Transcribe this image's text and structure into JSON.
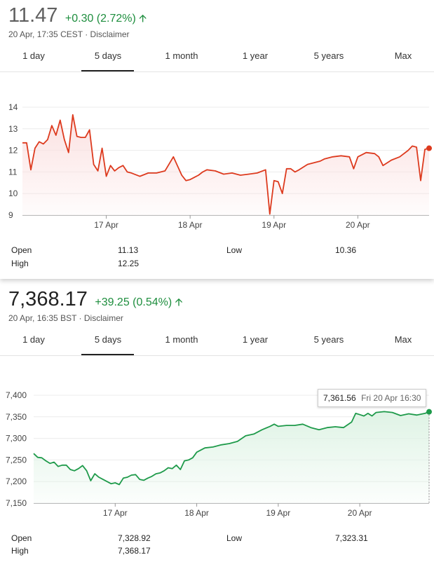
{
  "tabs": [
    "1 day",
    "5 days",
    "1 month",
    "1 year",
    "5 years",
    "Max"
  ],
  "stocks": [
    {
      "price": "11.47",
      "change": "+0.30 (2.72%)",
      "arrow": "up-arrow-icon",
      "timestamp": "20 Apr, 17:35 CEST",
      "separator": "·",
      "disclaimer": "Disclaimer",
      "active_tab": 1,
      "color": "#dd3a1e",
      "fill_color": "#fbe1e1",
      "stats": {
        "open_label": "Open",
        "open": "11.13",
        "high_label": "High",
        "high": "12.25",
        "low_label": "Low",
        "low": "10.36"
      }
    },
    {
      "price": "7,368.17",
      "change": "+39.25 (0.54%)",
      "arrow": "up-arrow-icon",
      "timestamp": "20 Apr, 16:35 BST",
      "separator": "·",
      "disclaimer": "Disclaimer",
      "active_tab": 1,
      "color": "#1e9a4a",
      "fill_color": "#dff3e5",
      "tooltip": {
        "value": "7,361.56",
        "time": "Fri 20 Apr 16:30"
      },
      "stats": {
        "open_label": "Open",
        "open": "7,328.92",
        "high_label": "High",
        "high": "7,368.17",
        "low_label": "Low",
        "low": "7,323.31"
      }
    }
  ],
  "chart_data": [
    {
      "type": "area",
      "title": "",
      "x_ticks": [
        "17 Apr",
        "18 Apr",
        "19 Apr",
        "20 Apr"
      ],
      "y_ticks": [
        9,
        10,
        11,
        12,
        13,
        14
      ],
      "xlim": [
        0,
        4.85
      ],
      "ylim": [
        9,
        14
      ],
      "grid": true,
      "series": [
        {
          "x": [
            0,
            0.05,
            0.1,
            0.15,
            0.2,
            0.25,
            0.3,
            0.35,
            0.4,
            0.45,
            0.5,
            0.55,
            0.6,
            0.65,
            0.7,
            0.75,
            0.8,
            0.85,
            0.9,
            0.95,
            1.0,
            1.05,
            1.1,
            1.15,
            1.2,
            1.25,
            1.3,
            1.4,
            1.5,
            1.6,
            1.7,
            1.8,
            1.9,
            1.95,
            2.0,
            2.05,
            2.1,
            2.15,
            2.2,
            2.3,
            2.4,
            2.5,
            2.6,
            2.7,
            2.8,
            2.9,
            2.95,
            3.0,
            3.05,
            3.1,
            3.15,
            3.2,
            3.25,
            3.3,
            3.4,
            3.5,
            3.55,
            3.6,
            3.7,
            3.8,
            3.9,
            3.95,
            4.0,
            4.05,
            4.1,
            4.2,
            4.25,
            4.3,
            4.4,
            4.5,
            4.6,
            4.65,
            4.7,
            4.75,
            4.8,
            4.85
          ],
          "y": [
            12.35,
            12.35,
            11.1,
            12.1,
            12.4,
            12.3,
            12.5,
            13.15,
            12.7,
            13.4,
            12.5,
            11.9,
            13.65,
            12.65,
            12.6,
            12.6,
            12.95,
            11.35,
            11.05,
            12.1,
            10.8,
            11.3,
            11.05,
            11.2,
            11.3,
            11.0,
            10.95,
            10.8,
            10.95,
            10.95,
            11.05,
            11.7,
            10.85,
            10.6,
            10.65,
            10.75,
            10.85,
            11.0,
            11.1,
            11.05,
            10.9,
            10.95,
            10.85,
            10.9,
            10.95,
            11.1,
            9.05,
            10.6,
            10.55,
            10.0,
            11.15,
            11.15,
            11.0,
            11.1,
            11.35,
            11.45,
            11.5,
            11.6,
            11.7,
            11.75,
            11.7,
            11.15,
            11.7,
            11.8,
            11.9,
            11.85,
            11.7,
            11.3,
            11.55,
            11.7,
            12.0,
            12.2,
            12.15,
            10.6,
            12.05,
            12.1
          ]
        }
      ]
    },
    {
      "type": "area",
      "title": "",
      "x_ticks": [
        "17 Apr",
        "18 Apr",
        "19 Apr",
        "20 Apr"
      ],
      "y_ticks": [
        7150,
        7200,
        7250,
        7300,
        7350,
        7400
      ],
      "xlim": [
        0,
        4.85
      ],
      "ylim": [
        7150,
        7400
      ],
      "grid": true,
      "series": [
        {
          "x": [
            0,
            0.05,
            0.1,
            0.15,
            0.2,
            0.25,
            0.3,
            0.35,
            0.4,
            0.45,
            0.5,
            0.55,
            0.6,
            0.65,
            0.7,
            0.75,
            0.8,
            0.85,
            0.9,
            0.95,
            1.0,
            1.05,
            1.1,
            1.15,
            1.2,
            1.25,
            1.3,
            1.35,
            1.4,
            1.45,
            1.5,
            1.55,
            1.6,
            1.65,
            1.7,
            1.75,
            1.8,
            1.85,
            1.9,
            1.95,
            2.0,
            2.1,
            2.2,
            2.3,
            2.4,
            2.5,
            2.6,
            2.7,
            2.8,
            2.9,
            2.95,
            3.0,
            3.1,
            3.2,
            3.3,
            3.4,
            3.5,
            3.6,
            3.7,
            3.8,
            3.9,
            3.95,
            4.0,
            4.05,
            4.1,
            4.15,
            4.2,
            4.3,
            4.4,
            4.5,
            4.6,
            4.7,
            4.8,
            4.85
          ],
          "y": [
            7265,
            7256,
            7255,
            7248,
            7242,
            7245,
            7235,
            7238,
            7238,
            7228,
            7225,
            7230,
            7237,
            7225,
            7202,
            7218,
            7210,
            7205,
            7200,
            7195,
            7197,
            7193,
            7208,
            7210,
            7215,
            7216,
            7205,
            7203,
            7208,
            7212,
            7218,
            7220,
            7225,
            7232,
            7230,
            7238,
            7228,
            7248,
            7250,
            7255,
            7268,
            7278,
            7280,
            7285,
            7288,
            7293,
            7306,
            7310,
            7320,
            7328,
            7333,
            7328,
            7330,
            7330,
            7333,
            7325,
            7320,
            7325,
            7327,
            7325,
            7338,
            7358,
            7355,
            7352,
            7358,
            7352,
            7360,
            7362,
            7360,
            7353,
            7357,
            7354,
            7358,
            7361.56
          ]
        }
      ]
    }
  ]
}
